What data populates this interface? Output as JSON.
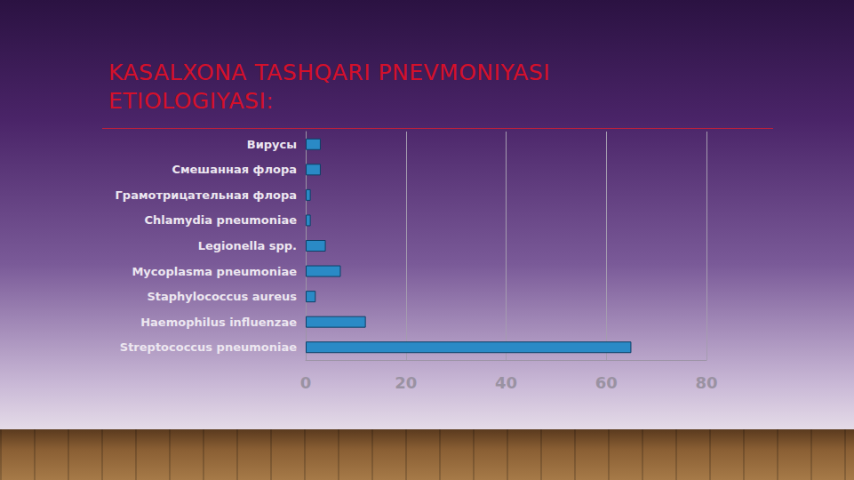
{
  "chart_data": {
    "type": "bar",
    "orientation": "horizontal",
    "title": "KASALXONA TASHQARI PNEVMONIYASI ETIOLOGIYASI:",
    "categories": [
      "Вирусы",
      "Смешанная флора",
      "Грамотрицательная флора",
      "Chlamydia pneumoniae",
      "Legionella spp.",
      "Mycoplasma pneumoniae",
      "Staphylococcus aureus",
      "Haemophilus influenzae",
      "Streptococcus pneumoniae"
    ],
    "values": [
      3,
      3,
      1,
      1,
      4,
      7,
      2,
      12,
      65
    ],
    "color": "#2a8ac6",
    "xlim": [
      0,
      80
    ],
    "xticks": [
      0,
      20,
      40,
      60,
      80
    ],
    "grid": true
  }
}
